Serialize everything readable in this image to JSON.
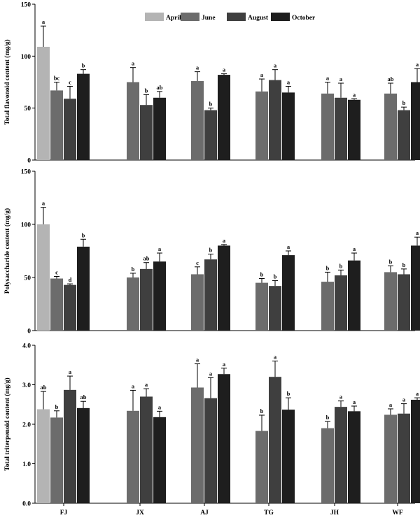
{
  "chart_data": {
    "type": "bar",
    "categories": [
      "FJ",
      "JX",
      "AJ",
      "TG",
      "JH",
      "WF"
    ],
    "legend": {
      "location": "top-center",
      "entries": [
        "April",
        "June",
        "August",
        "October"
      ]
    },
    "series_colors": {
      "April": "#b4b4b4",
      "June": "#6c6c6c",
      "August": "#3f3f3f",
      "October": "#1e1e1e"
    },
    "panels": [
      {
        "ylabel": "Total flavonoid content (mg/g)",
        "ylim": [
          0,
          150
        ],
        "yticks": [
          "0",
          "50",
          "100",
          "150"
        ],
        "series": [
          {
            "name": "April",
            "values": [
              109,
              null,
              null,
              null,
              null,
              null
            ],
            "errors": [
              20,
              null,
              null,
              null,
              null,
              null
            ],
            "letters": [
              "a",
              null,
              null,
              null,
              null,
              null
            ]
          },
          {
            "name": "June",
            "values": [
              67,
              75,
              76,
              66,
              64,
              64
            ],
            "errors": [
              8,
              14,
              9,
              12,
              11,
              10
            ],
            "letters": [
              "bc",
              "a",
              "a",
              "a",
              "a",
              "ab"
            ]
          },
          {
            "name": "August",
            "values": [
              59,
              53,
              48,
              77,
              60,
              48
            ],
            "errors": [
              12,
              10,
              2,
              10,
              14,
              3
            ],
            "letters": [
              "c",
              "b",
              "b",
              "a",
              "a",
              "b"
            ]
          },
          {
            "name": "October",
            "values": [
              83,
              60,
              82,
              65,
              58,
              75
            ],
            "errors": [
              4,
              6,
              1,
              6,
              1,
              13
            ],
            "letters": [
              "b",
              "ab",
              "a",
              "a",
              "a",
              "a"
            ]
          }
        ]
      },
      {
        "ylabel": "Polysaccharide content (mg/g)",
        "ylim": [
          0,
          150
        ],
        "yticks": [
          "0",
          "50",
          "100",
          "150"
        ],
        "series": [
          {
            "name": "April",
            "values": [
              100,
              null,
              null,
              null,
              null,
              null
            ],
            "errors": [
              16,
              null,
              null,
              null,
              null,
              null
            ],
            "letters": [
              "a",
              null,
              null,
              null,
              null,
              null
            ]
          },
          {
            "name": "June",
            "values": [
              49,
              50,
              53,
              45,
              46,
              55
            ],
            "errors": [
              2,
              4,
              7,
              4,
              9,
              6
            ],
            "letters": [
              "c",
              "b",
              "c",
              "b",
              "b",
              "b"
            ]
          },
          {
            "name": "August",
            "values": [
              43,
              58,
              67,
              42,
              52,
              53
            ],
            "errors": [
              1,
              6,
              5,
              5,
              5,
              5
            ],
            "letters": [
              "d",
              "ab",
              "b",
              "b",
              "b",
              "b"
            ]
          },
          {
            "name": "October",
            "values": [
              79,
              65,
              80,
              71,
              66,
              80
            ],
            "errors": [
              7,
              8,
              1,
              4,
              7,
              8
            ],
            "letters": [
              "b",
              "a",
              "a",
              "a",
              "a",
              "a"
            ]
          }
        ]
      },
      {
        "ylabel": "Total triterpenoid content (mg/g)",
        "ylim": [
          0,
          4.0
        ],
        "yticks": [
          "0.0",
          "1.0",
          "2.0",
          "3.0",
          "4.0"
        ],
        "series": [
          {
            "name": "April",
            "values": [
              2.38,
              null,
              null,
              null,
              null,
              null
            ],
            "errors": [
              0.45,
              null,
              null,
              null,
              null,
              null
            ],
            "letters": [
              "ab",
              null,
              null,
              null,
              null,
              null
            ]
          },
          {
            "name": "June",
            "values": [
              2.17,
              2.34,
              2.93,
              1.83,
              1.9,
              2.24
            ],
            "errors": [
              0.17,
              0.52,
              0.6,
              0.4,
              0.17,
              0.15
            ],
            "letters": [
              "b",
              "a",
              "a",
              "b",
              "b",
              "a"
            ]
          },
          {
            "name": "August",
            "values": [
              2.87,
              2.7,
              2.66,
              3.2,
              2.44,
              2.27
            ],
            "errors": [
              0.35,
              0.2,
              0.52,
              0.4,
              0.15,
              0.25
            ],
            "letters": [
              "a",
              "a",
              "a",
              "a",
              "a",
              "a"
            ]
          },
          {
            "name": "October",
            "values": [
              2.41,
              2.18,
              3.27,
              2.37,
              2.33,
              2.62
            ],
            "errors": [
              0.17,
              0.15,
              0.15,
              0.3,
              0.13,
              0.05
            ],
            "letters": [
              "ab",
              "a",
              "a",
              "b",
              "a",
              "a"
            ]
          }
        ]
      }
    ]
  }
}
